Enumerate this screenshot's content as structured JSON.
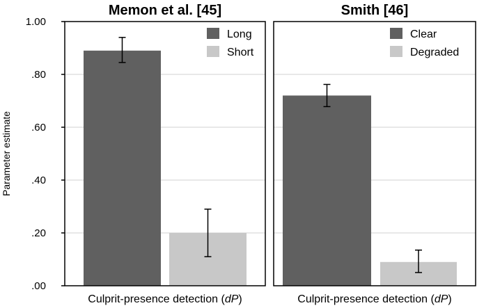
{
  "chart_data": [
    {
      "type": "bar",
      "title": "Memon et al. [45]",
      "xlabel_main": "Culprit-presence detection (",
      "xlabel_italic": "dP",
      "xlabel_end": ")",
      "ylabel": "Parameter estimate",
      "ylim": [
        0,
        1.0
      ],
      "yticks": [
        0.0,
        0.2,
        0.4,
        0.6,
        0.8,
        1.0
      ],
      "ytick_labels": [
        ".00",
        ".20",
        ".40",
        ".60",
        ".80",
        "1.00"
      ],
      "grid": true,
      "legend_position": "top-right",
      "series": [
        {
          "name": "Long",
          "value": 0.89,
          "err_low": 0.845,
          "err_high": 0.94,
          "color": "#606060"
        },
        {
          "name": "Short",
          "value": 0.2,
          "err_low": 0.11,
          "err_high": 0.29,
          "color": "#c8c8c8"
        }
      ]
    },
    {
      "type": "bar",
      "title": "Smith [46]",
      "xlabel_main": "Culprit-presence detection (",
      "xlabel_italic": "dP",
      "xlabel_end": ")",
      "ylim": [
        0,
        1.0
      ],
      "grid": true,
      "legend_position": "top-right",
      "series": [
        {
          "name": "Clear",
          "value": 0.72,
          "err_low": 0.678,
          "err_high": 0.762,
          "color": "#606060"
        },
        {
          "name": "Degraded",
          "value": 0.09,
          "err_low": 0.05,
          "err_high": 0.135,
          "color": "#c8c8c8"
        }
      ]
    }
  ]
}
